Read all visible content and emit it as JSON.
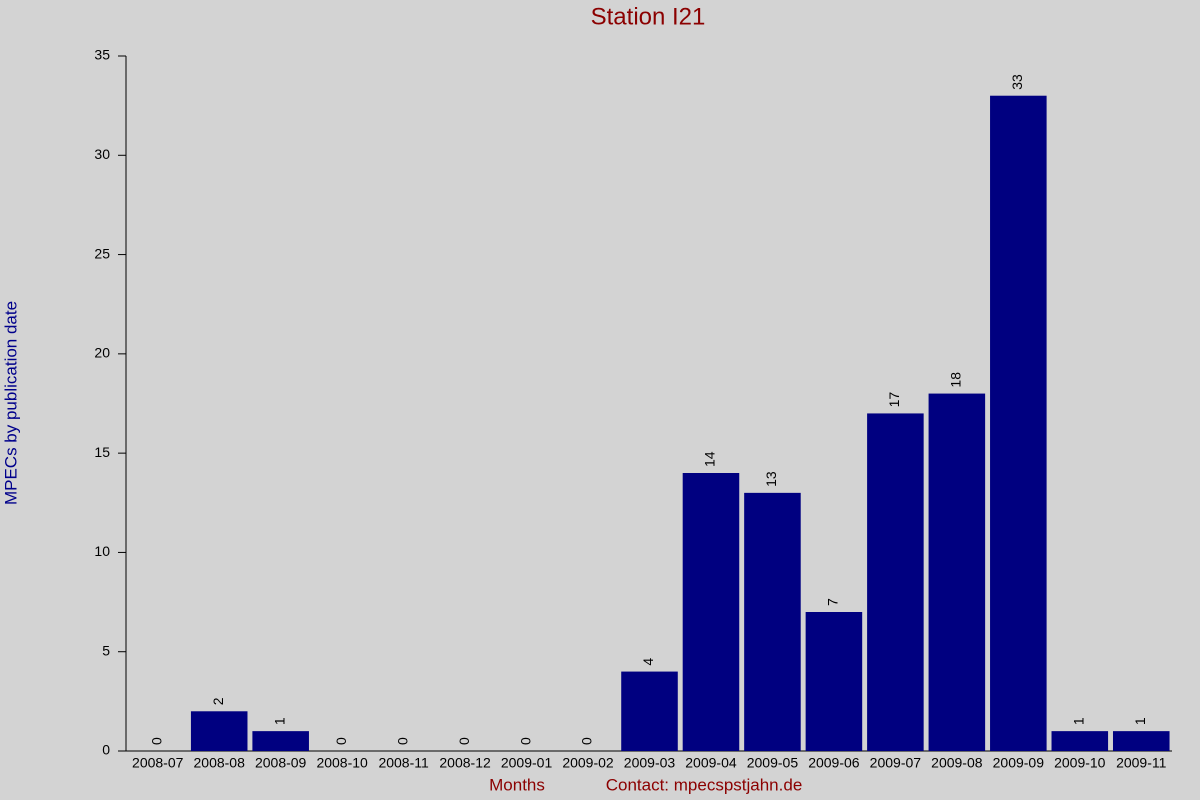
{
  "chart_data": {
    "type": "bar",
    "title": "Station I21",
    "x_label": "Months",
    "contact": "Contact: mpecspstjahn.de",
    "y_label": "MPECs by publication date",
    "categories": [
      "2008-07",
      "2008-08",
      "2008-09",
      "2008-10",
      "2008-11",
      "2008-12",
      "2009-01",
      "2009-02",
      "2009-03",
      "2009-04",
      "2009-05",
      "2009-06",
      "2009-07",
      "2009-08",
      "2009-09",
      "2009-10",
      "2009-11"
    ],
    "values": [
      0,
      2,
      1,
      0,
      0,
      0,
      0,
      0,
      4,
      14,
      13,
      7,
      17,
      18,
      33,
      1,
      1
    ],
    "color": "#000080",
    "ylim": [
      0,
      35
    ],
    "yticks": [
      0,
      5,
      10,
      15,
      20,
      25,
      30,
      35
    ],
    "grid": false
  }
}
